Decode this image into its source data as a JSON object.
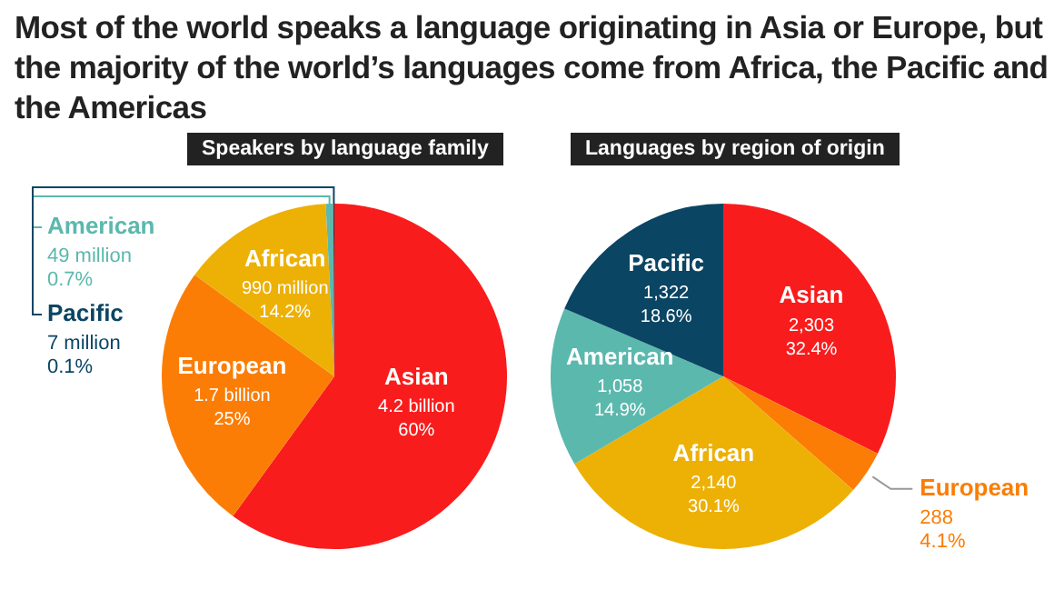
{
  "chart_data": [
    {
      "type": "pie",
      "subtitle": "Most of the world speaks a language originating in Asia or Europe, but the majority of the world’s languages come from Africa, the Pacific and the Americas",
      "title": "Speakers by language family",
      "categories": [
        "Asian",
        "European",
        "African",
        "American",
        "Pacific"
      ],
      "values": [
        60,
        25,
        14.2,
        0.7,
        0.1
      ],
      "colors": [
        "#f91c1c",
        "#fb7d05",
        "#edb005",
        "#5bb8ad",
        "#0a4563"
      ],
      "value_labels": [
        "4.2 billion\n60%",
        "1.7 billion\n25%",
        "990 million\n14.2%",
        "49 million\n0.7%",
        "7 million\n0.1%"
      ],
      "legend": false
    },
    {
      "type": "pie",
      "title": "Languages by region of origin",
      "categories": [
        "Asian",
        "European",
        "African",
        "American",
        "Pacific"
      ],
      "values": [
        2303,
        288,
        2140,
        1058,
        1322
      ],
      "colors": [
        "#f91c1c",
        "#fb7d05",
        "#edb005",
        "#5bb8ad",
        "#0a4563"
      ],
      "value_labels": [
        "2,303\n32.4%",
        "288\n4.1%",
        "2,140\n30.1%",
        "1,058\n14.9%",
        "1,322\n18.6%"
      ],
      "legend": false
    }
  ]
}
